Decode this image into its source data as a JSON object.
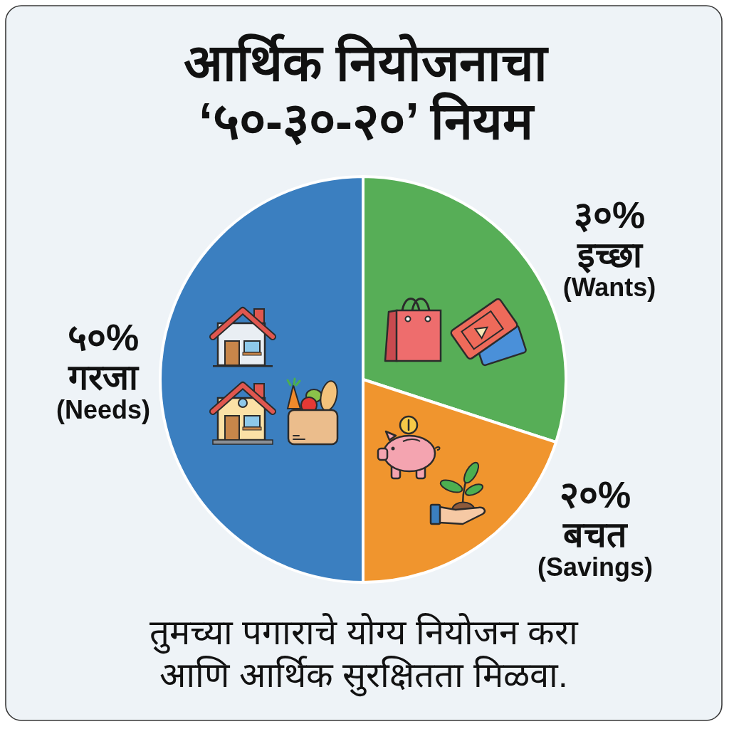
{
  "chart_data": {
    "type": "pie",
    "title": "आर्थिक नियोजनाचा\n‘५०-३०-२०’ नियम",
    "categories": [
      "गरजा\n(Needs)",
      "इच्छा\n(Wants)",
      "बचत\n(Savings)"
    ],
    "values": [
      50,
      30,
      20
    ],
    "colors": [
      "#3b7fc0",
      "#57ae57",
      "#f0952e"
    ],
    "value_labels": [
      "५०%",
      "३०%",
      "२०%"
    ],
    "annotations": [
      "तुमच्या पगाराचे योग्य नियोजन करा\nआणि आर्थिक सुरक्षितता मिळवा."
    ]
  }
}
